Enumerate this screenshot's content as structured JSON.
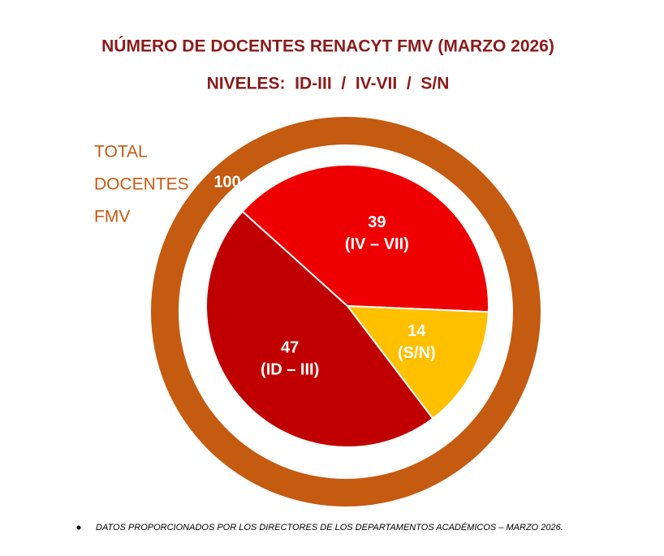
{
  "chart_data": {
    "type": "pie",
    "title": "NÚMERO DE DOCENTES RENACYT FMV (MARZO 2026)",
    "subtitle": "NIVELES:  ID-III  /  IV-VII  /  S/N",
    "categories": [
      "(IV – VII)",
      "(S/N)",
      "(ID – III)"
    ],
    "values": [
      39,
      14,
      47
    ],
    "colors": [
      "#ee0000",
      "#ffc000",
      "#c00000"
    ],
    "start_angle": 312,
    "total": {
      "label": [
        "TOTAL",
        "DOCENTES",
        "FMV"
      ],
      "value": 100,
      "color": "#c55a11"
    }
  },
  "notes": [
    "DATOS PROPORCIONADOS POR LOS DIRECTORES DE LOS DEPARTAMENTOS ACADÉMICOS – MARZO 2026."
  ]
}
